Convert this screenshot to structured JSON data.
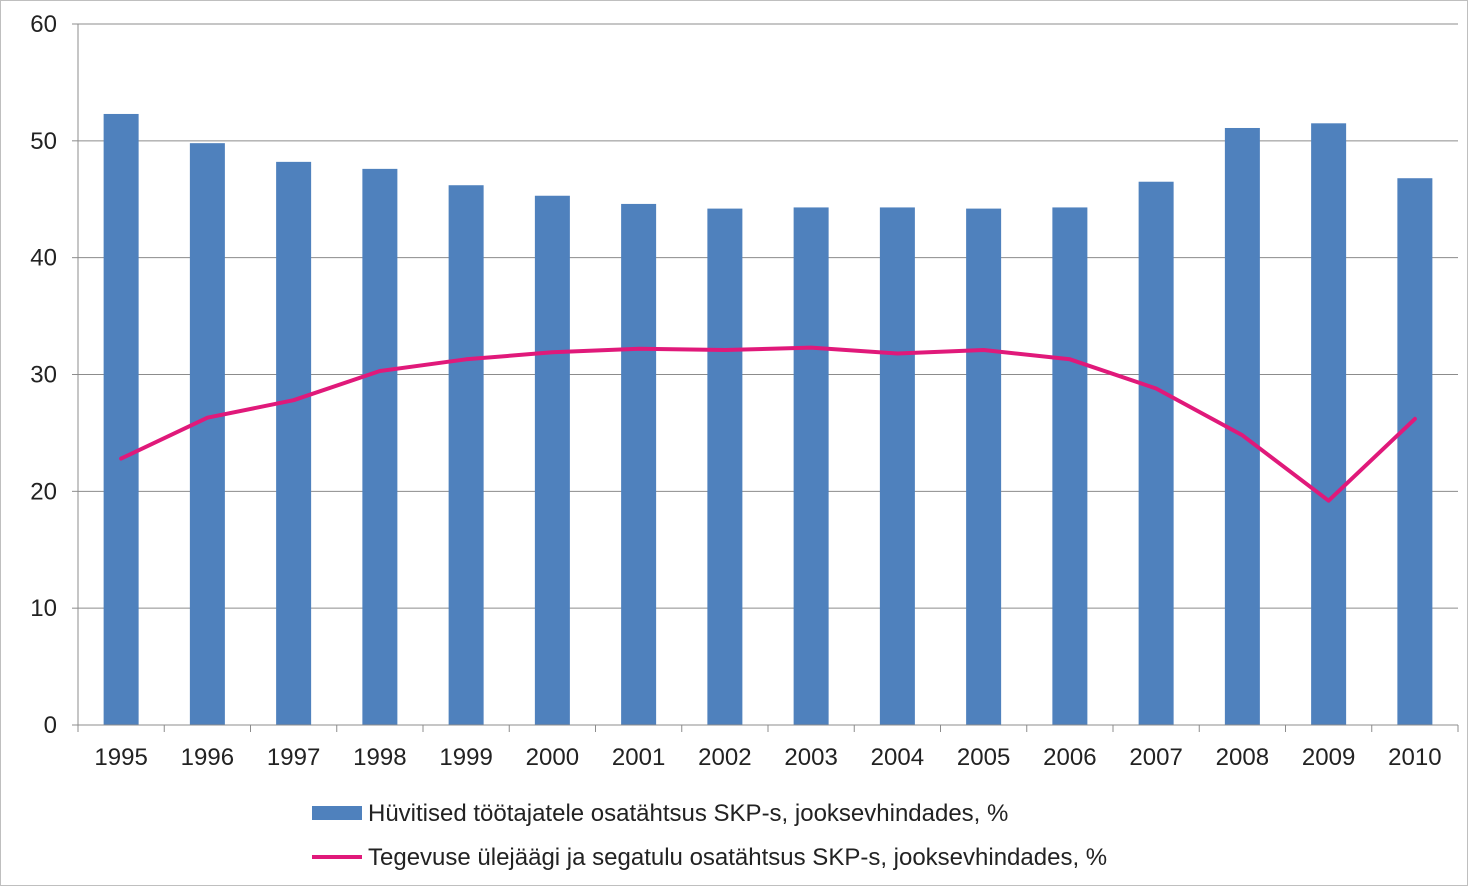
{
  "chart_data": {
    "type": "bar+line",
    "categories": [
      "1995",
      "1996",
      "1997",
      "1998",
      "1999",
      "2000",
      "2001",
      "2002",
      "2003",
      "2004",
      "2005",
      "2006",
      "2007",
      "2008",
      "2009",
      "2010"
    ],
    "series": [
      {
        "name": "Hüvitised töötajatele osatähtsus SKP-s, jooksevhindades, %",
        "type": "bar",
        "color": "#4F81BD",
        "values": [
          52.3,
          49.8,
          48.2,
          47.6,
          46.2,
          45.3,
          44.6,
          44.2,
          44.3,
          44.3,
          44.2,
          44.3,
          46.5,
          51.1,
          51.5,
          46.8
        ]
      },
      {
        "name": "Tegevuse ülejäägi ja segatulu osatähtsus SKP-s, jooksevhindades, %",
        "type": "line",
        "color": "#E0197A",
        "values": [
          22.8,
          26.3,
          27.8,
          30.3,
          31.3,
          31.9,
          32.2,
          32.1,
          32.3,
          31.8,
          32.1,
          31.3,
          28.8,
          24.8,
          19.2,
          26.2
        ]
      }
    ],
    "ylim": [
      0,
      60
    ],
    "yticks": [
      "0",
      "10",
      "20",
      "30",
      "40",
      "50",
      "60"
    ],
    "grid": true,
    "legend_position": "bottom"
  }
}
